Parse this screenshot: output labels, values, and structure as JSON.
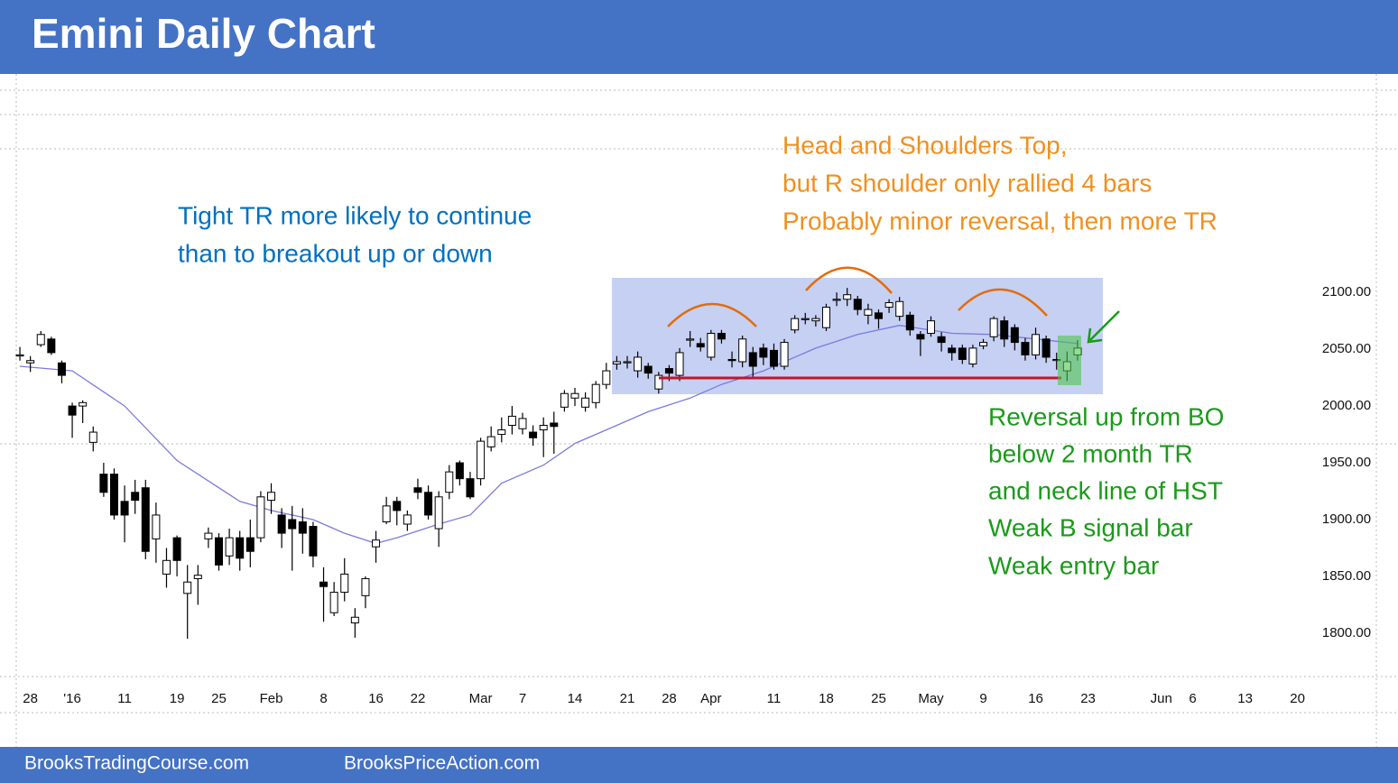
{
  "chart_data": {
    "type": "candlestick",
    "title": "Emini Daily Chart",
    "up_color": "#ffffff",
    "down_color": "#000000",
    "open": [
      2044,
      2038,
      2054,
      2059,
      2038,
      2000,
      2000,
      1968,
      1940,
      1940,
      1916,
      1924,
      1928,
      1883,
      1852,
      1884,
      1835,
      1848,
      1883,
      1884,
      1868,
      1884,
      1884,
      1884,
      1917,
      1904,
      1900,
      1898,
      1894,
      1845,
      1818,
      1836,
      1809,
      1833,
      1876,
      1898,
      1916,
      1896,
      1928,
      1924,
      1892,
      1924,
      1950,
      1936,
      1936,
      1964,
      1975,
      1983,
      1980,
      1977,
      1979,
      1985,
      1999,
      2007,
      1999,
      2003,
      2019,
      2037,
      2039,
      2031,
      2035,
      2015,
      2033,
      2027,
      2058,
      2055,
      2043,
      2064,
      2041,
      2039,
      2047,
      2051,
      2049,
      2035,
      2067,
      2077,
      2075,
      2069,
      2094,
      2094,
      2094,
      2080,
      2082,
      2087,
      2079,
      2080,
      2063,
      2064,
      2061,
      2051,
      2051,
      2037,
      2053,
      2061,
      2075,
      2069,
      2056,
      2045,
      2059,
      2041,
      2031,
      2045
    ],
    "high": [
      2052,
      2044,
      2066,
      2061,
      2040,
      2003,
      2005,
      1982,
      1950,
      1945,
      1930,
      1935,
      1935,
      1915,
      1875,
      1886,
      1860,
      1860,
      1893,
      1888,
      1892,
      1890,
      1900,
      1925,
      1932,
      1910,
      1912,
      1910,
      1898,
      1858,
      1845,
      1866,
      1822,
      1850,
      1890,
      1920,
      1920,
      1908,
      1936,
      1930,
      1925,
      1948,
      1952,
      1942,
      1972,
      1982,
      1990,
      2000,
      1994,
      1983,
      1990,
      1995,
      2014,
      2016,
      2012,
      2022,
      2038,
      2044,
      2044,
      2048,
      2038,
      2030,
      2036,
      2051,
      2066,
      2060,
      2067,
      2067,
      2048,
      2062,
      2052,
      2055,
      2055,
      2059,
      2080,
      2082,
      2080,
      2090,
      2100,
      2104,
      2097,
      2090,
      2085,
      2094,
      2096,
      2083,
      2066,
      2079,
      2065,
      2054,
      2054,
      2054,
      2059,
      2079,
      2079,
      2072,
      2060,
      2069,
      2062,
      2047,
      2048,
      2058
    ],
    "low": [
      2040,
      2030,
      2052,
      2045,
      2020,
      1972,
      1985,
      1960,
      1920,
      1900,
      1880,
      1905,
      1865,
      1862,
      1840,
      1850,
      1795,
      1825,
      1875,
      1855,
      1860,
      1855,
      1858,
      1880,
      1905,
      1875,
      1855,
      1870,
      1858,
      1810,
      1815,
      1828,
      1796,
      1822,
      1862,
      1896,
      1895,
      1890,
      1918,
      1900,
      1876,
      1918,
      1930,
      1918,
      1930,
      1960,
      1968,
      1975,
      1975,
      1965,
      1955,
      1958,
      1995,
      2000,
      1995,
      1998,
      2015,
      2032,
      2033,
      2025,
      2024,
      2011,
      2022,
      2022,
      2052,
      2048,
      2040,
      2055,
      2034,
      2034,
      2025,
      2036,
      2032,
      2032,
      2064,
      2072,
      2070,
      2066,
      2088,
      2088,
      2080,
      2072,
      2068,
      2082,
      2075,
      2062,
      2044,
      2061,
      2048,
      2040,
      2037,
      2034,
      2050,
      2057,
      2052,
      2049,
      2040,
      2041,
      2038,
      2032,
      2022,
      2040
    ],
    "close": [
      2045,
      2040,
      2063,
      2047,
      2027,
      1992,
      2003,
      1977,
      1924,
      1904,
      1904,
      1917,
      1872,
      1904,
      1864,
      1864,
      1845,
      1851,
      1888,
      1860,
      1884,
      1866,
      1872,
      1920,
      1924,
      1888,
      1892,
      1888,
      1868,
      1841,
      1836,
      1852,
      1814,
      1848,
      1882,
      1912,
      1908,
      1904,
      1924,
      1904,
      1920,
      1942,
      1936,
      1920,
      1969,
      1973,
      1979,
      1991,
      1989,
      1972,
      1983,
      1982,
      2011,
      2011,
      2007,
      2019,
      2031,
      2039,
      2039,
      2043,
      2029,
      2027,
      2029,
      2047,
      2059,
      2052,
      2064,
      2059,
      2040,
      2059,
      2035,
      2043,
      2035,
      2056,
      2077,
      2077,
      2077,
      2087,
      2094,
      2098,
      2085,
      2085,
      2077,
      2091,
      2092,
      2067,
      2059,
      2075,
      2056,
      2047,
      2041,
      2051,
      2056,
      2077,
      2059,
      2056,
      2045,
      2063,
      2043,
      2041,
      2039,
      2051
    ],
    "ma": {
      "color": "#7b7bdf",
      "x": [
        0,
        5,
        10,
        15,
        21,
        24,
        28,
        31,
        34,
        36,
        40,
        43,
        46,
        50,
        53,
        57,
        60,
        64,
        67,
        71,
        76,
        80,
        84,
        89,
        93,
        97,
        101
      ],
      "values": [
        2035,
        2031,
        2000,
        1952,
        1916,
        1908,
        1900,
        1888,
        1879,
        1884,
        1896,
        1904,
        1932,
        1948,
        1967,
        1983,
        1995,
        2007,
        2019,
        2031,
        2051,
        2063,
        2071,
        2064,
        2063,
        2059,
        2055
      ]
    },
    "xlim": [
      -1.9,
      131.6
    ],
    "ylim": [
      1730,
      2290
    ],
    "xticks": [
      {
        "value": 1,
        "label": "28"
      },
      {
        "value": 5,
        "label": "'16"
      },
      {
        "value": 10,
        "label": "11"
      },
      {
        "value": 15,
        "label": "19"
      },
      {
        "value": 19,
        "label": "25"
      },
      {
        "value": 24,
        "label": "Feb"
      },
      {
        "value": 29,
        "label": "8"
      },
      {
        "value": 34,
        "label": "16"
      },
      {
        "value": 38,
        "label": "22"
      },
      {
        "value": 44,
        "label": "Mar"
      },
      {
        "value": 48,
        "label": "7"
      },
      {
        "value": 53,
        "label": "14"
      },
      {
        "value": 58,
        "label": "21"
      },
      {
        "value": 62,
        "label": "28"
      },
      {
        "value": 66,
        "label": "Apr"
      },
      {
        "value": 72,
        "label": "11"
      },
      {
        "value": 77,
        "label": "18"
      },
      {
        "value": 82,
        "label": "25"
      },
      {
        "value": 87,
        "label": "May"
      },
      {
        "value": 92,
        "label": "9"
      },
      {
        "value": 97,
        "label": "16"
      },
      {
        "value": 102,
        "label": "23"
      },
      {
        "value": 109,
        "label": "Jun"
      },
      {
        "value": 112,
        "label": "6"
      },
      {
        "value": 117,
        "label": "13"
      },
      {
        "value": 122,
        "label": "20"
      }
    ],
    "yticks": [
      {
        "value": 2100,
        "label": "2100.00"
      },
      {
        "value": 2050,
        "label": "2050.00"
      },
      {
        "value": 2000,
        "label": "2000.00"
      },
      {
        "value": 1950,
        "label": "1950.00"
      },
      {
        "value": 1900,
        "label": "1900.00"
      },
      {
        "value": 1850,
        "label": "1850.00"
      },
      {
        "value": 1800,
        "label": "1800.00"
      }
    ],
    "annotations": [
      {
        "color": "#0070c0",
        "lines": [
          "Tight TR more likely to continue",
          "than to breakout up or down"
        ]
      },
      {
        "color": "#f0901e",
        "lines": [
          "Head and Shoulders Top,",
          "but R shoulder only rallied 4 bars",
          "Probably minor reversal, then more TR"
        ]
      },
      {
        "color": "#1a9a1a",
        "lines": [
          "Reversal up from BO",
          "below 2 month TR",
          "and neck line of HST",
          "Weak B signal bar",
          "Weak entry bar"
        ]
      }
    ]
  },
  "footer": [
    "BrooksTradingCourse.com",
    "BrooksPriceAction.com"
  ]
}
